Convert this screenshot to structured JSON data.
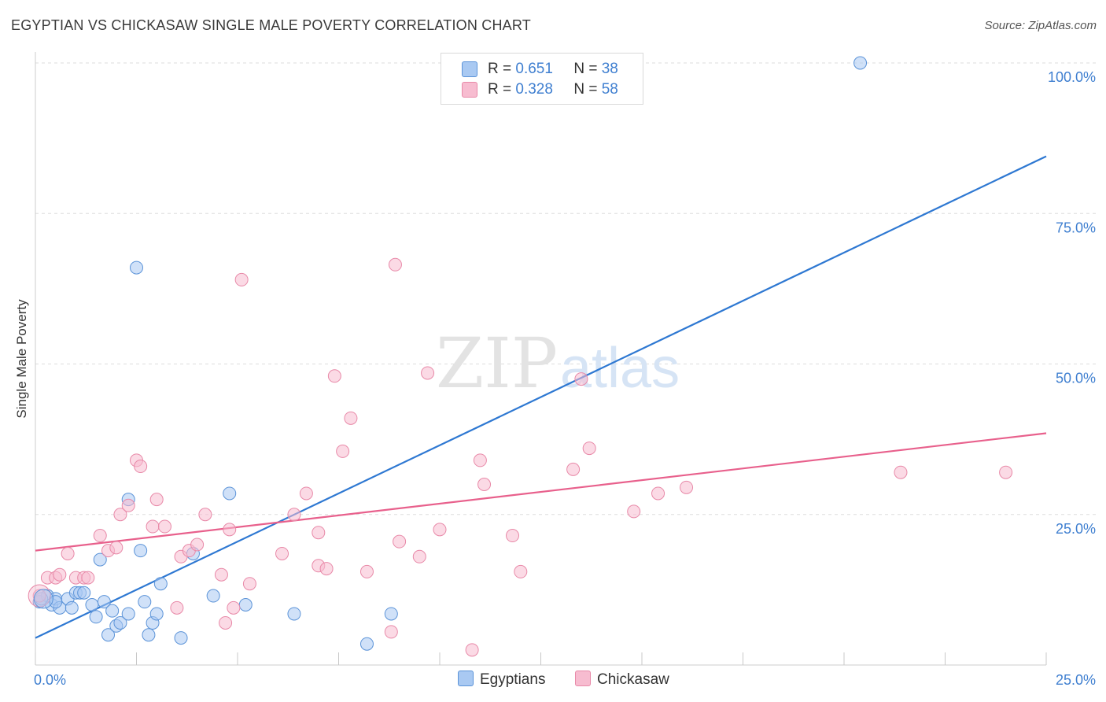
{
  "title": "EGYPTIAN VS CHICKASAW SINGLE MALE POVERTY CORRELATION CHART",
  "source": "Source: ZipAtlas.com",
  "watermark": {
    "zip": "ZIP",
    "atlas": "atlas"
  },
  "legend_top": [
    {
      "r_label": "R =",
      "r_value": "0.651",
      "n_label": "N =",
      "n_value": "38"
    },
    {
      "r_label": "R =",
      "r_value": "0.328",
      "n_label": "N =",
      "n_value": "58"
    }
  ],
  "legend_bottom": [
    "Egyptians",
    "Chickasaw"
  ],
  "colors": {
    "egyptians_fill": "#a9c9f2",
    "egyptians_stroke": "#5b93d8",
    "egyptians_line": "#2e78d2",
    "chickasaw_fill": "#f7bcd0",
    "chickasaw_stroke": "#e889a8",
    "chickasaw_line": "#e8608c",
    "tick_label": "#3f7fd0",
    "grid": "#dddddd"
  },
  "chart_data": {
    "type": "scatter",
    "title": "EGYPTIAN VS CHICKASAW SINGLE MALE POVERTY CORRELATION CHART",
    "xlabel": "",
    "ylabel": "Single Male Poverty",
    "xlim": [
      0,
      25
    ],
    "ylim": [
      0,
      100
    ],
    "x_tick_labels": [
      "0.0%",
      "25.0%"
    ],
    "y_tick_labels": [
      "25.0%",
      "50.0%",
      "75.0%",
      "100.0%"
    ],
    "y_ticks": [
      25,
      50,
      75,
      100
    ],
    "series": [
      {
        "name": "Egyptians",
        "r": 0.651,
        "n": 38,
        "trend": {
          "x": [
            0,
            25
          ],
          "y": [
            4.5,
            84.5
          ]
        },
        "points": [
          [
            0.1,
            10.5
          ],
          [
            0.3,
            11.5
          ],
          [
            0.4,
            10
          ],
          [
            0.5,
            11
          ],
          [
            0.6,
            9.5
          ],
          [
            0.8,
            11
          ],
          [
            0.9,
            9.5
          ],
          [
            1.0,
            12
          ],
          [
            1.1,
            12
          ],
          [
            1.2,
            12
          ],
          [
            1.4,
            10
          ],
          [
            1.5,
            8
          ],
          [
            1.6,
            17.5
          ],
          [
            1.7,
            10.5
          ],
          [
            1.8,
            5
          ],
          [
            1.9,
            9
          ],
          [
            2.0,
            6.5
          ],
          [
            2.1,
            7
          ],
          [
            2.3,
            8.5
          ],
          [
            2.3,
            27.5
          ],
          [
            2.5,
            66
          ],
          [
            2.6,
            19
          ],
          [
            2.7,
            10.5
          ],
          [
            2.8,
            5
          ],
          [
            2.9,
            7
          ],
          [
            3.0,
            8.5
          ],
          [
            3.1,
            13.5
          ],
          [
            3.6,
            4.5
          ],
          [
            3.9,
            18.5
          ],
          [
            4.4,
            11.5
          ],
          [
            4.8,
            28.5
          ],
          [
            5.2,
            10
          ],
          [
            6.4,
            8.5
          ],
          [
            8.2,
            3.5
          ],
          [
            8.8,
            8.5
          ],
          [
            20.4,
            100
          ],
          [
            0.15,
            11
          ],
          [
            0.5,
            10.5
          ]
        ]
      },
      {
        "name": "Chickasaw",
        "r": 0.328,
        "n": 58,
        "trend": {
          "x": [
            0,
            25
          ],
          "y": [
            19,
            38.5
          ]
        },
        "points": [
          [
            0.1,
            11.5
          ],
          [
            0.3,
            14.5
          ],
          [
            0.5,
            14.5
          ],
          [
            0.6,
            15
          ],
          [
            0.8,
            18.5
          ],
          [
            1.0,
            14.5
          ],
          [
            1.2,
            14.5
          ],
          [
            1.3,
            14.5
          ],
          [
            1.6,
            21.5
          ],
          [
            1.8,
            19
          ],
          [
            2.0,
            19.5
          ],
          [
            2.1,
            25
          ],
          [
            2.3,
            26.5
          ],
          [
            2.5,
            34
          ],
          [
            2.6,
            33
          ],
          [
            2.9,
            23
          ],
          [
            3.0,
            27.5
          ],
          [
            3.2,
            23
          ],
          [
            3.5,
            9.5
          ],
          [
            3.6,
            18
          ],
          [
            3.8,
            19
          ],
          [
            4.0,
            20
          ],
          [
            4.2,
            25
          ],
          [
            4.6,
            15
          ],
          [
            4.7,
            7
          ],
          [
            4.8,
            22.5
          ],
          [
            4.9,
            9.5
          ],
          [
            5.1,
            64
          ],
          [
            5.3,
            13.5
          ],
          [
            6.1,
            18.5
          ],
          [
            6.4,
            25
          ],
          [
            6.7,
            28.5
          ],
          [
            7.0,
            22
          ],
          [
            7.0,
            16.5
          ],
          [
            7.2,
            16
          ],
          [
            7.4,
            48
          ],
          [
            7.6,
            35.5
          ],
          [
            7.8,
            41
          ],
          [
            8.2,
            15.5
          ],
          [
            8.8,
            5.5
          ],
          [
            8.9,
            66.5
          ],
          [
            9.0,
            20.5
          ],
          [
            9.5,
            18
          ],
          [
            9.7,
            48.5
          ],
          [
            10.0,
            22.5
          ],
          [
            10.8,
            2.5
          ],
          [
            11.0,
            34
          ],
          [
            11.1,
            30
          ],
          [
            11.8,
            21.5
          ],
          [
            12.0,
            15.5
          ],
          [
            13.3,
            32.5
          ],
          [
            13.5,
            47.5
          ],
          [
            13.7,
            36
          ],
          [
            14.8,
            25.5
          ],
          [
            15.4,
            28.5
          ],
          [
            16.1,
            29.5
          ],
          [
            21.4,
            32
          ],
          [
            24.0,
            32
          ]
        ]
      }
    ]
  }
}
